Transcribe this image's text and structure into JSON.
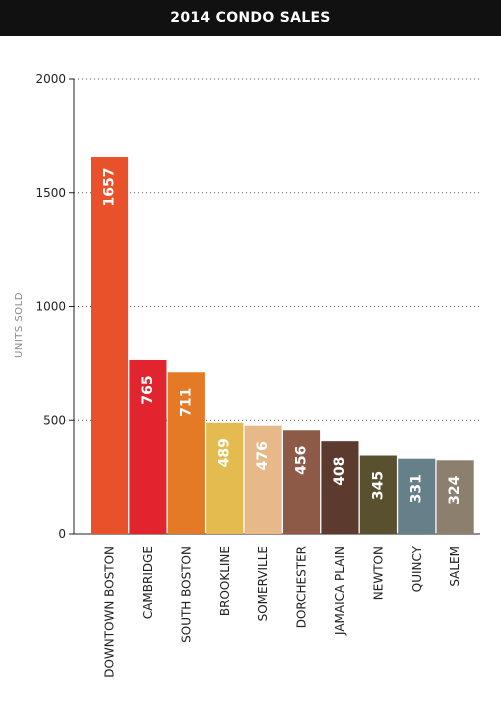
{
  "chart_data": {
    "type": "bar",
    "title": "2014 CONDO SALES",
    "xlabel": "",
    "ylabel": "UNITS SOLD",
    "ylim": [
      0,
      2000
    ],
    "yticks": [
      0,
      500,
      1000,
      1500,
      2000
    ],
    "grid": true,
    "categories": [
      "DOWNTOWN BOSTON",
      "CAMBRIDGE",
      "SOUTH BOSTON",
      "BROOKLINE",
      "SOMERVILLE",
      "DORCHESTER",
      "JAMAICA PLAIN",
      "NEWTON",
      "QUINCY",
      "SALEM"
    ],
    "values": [
      1657,
      765,
      711,
      489,
      476,
      456,
      408,
      345,
      331,
      324
    ],
    "colors": [
      "#e8512a",
      "#e2242f",
      "#e47a26",
      "#e4bb4f",
      "#e7b989",
      "#8d5a47",
      "#5c3a2e",
      "#59502f",
      "#66808a",
      "#8c7f6e"
    ]
  }
}
